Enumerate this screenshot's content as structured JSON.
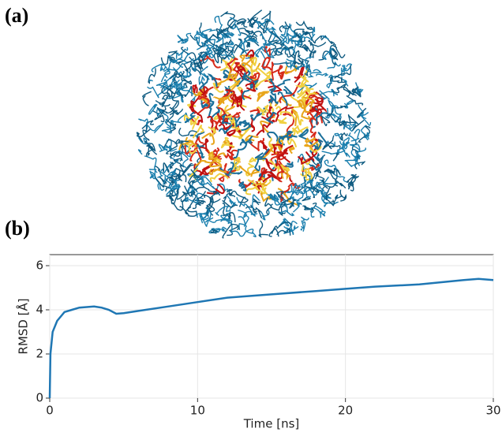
{
  "panels": [
    "(a)",
    "(b)"
  ],
  "chart_data": {
    "type": "line",
    "xlabel": "Time [ns]",
    "ylabel": "RMSD [Å]",
    "x": [
      0,
      0.05,
      0.2,
      0.5,
      1,
      1.5,
      2,
      3,
      3.5,
      4,
      4.5,
      5,
      6,
      8,
      10,
      12,
      15,
      18,
      20,
      22,
      25,
      28,
      29,
      30
    ],
    "series": [
      {
        "name": "RMSD",
        "color": "#1f77b4",
        "values": [
          0,
          2.0,
          3.0,
          3.5,
          3.9,
          4.0,
          4.1,
          4.15,
          4.1,
          4.0,
          3.82,
          3.85,
          3.95,
          4.15,
          4.35,
          4.55,
          4.7,
          4.85,
          4.95,
          5.05,
          5.15,
          5.35,
          5.4,
          5.35
        ]
      }
    ],
    "xlim": [
      0,
      30
    ],
    "xticks": [
      0,
      10,
      20,
      30
    ],
    "ylim": [
      0,
      6.5
    ],
    "yticks": [
      0,
      2,
      4,
      6
    ],
    "grid": true
  }
}
